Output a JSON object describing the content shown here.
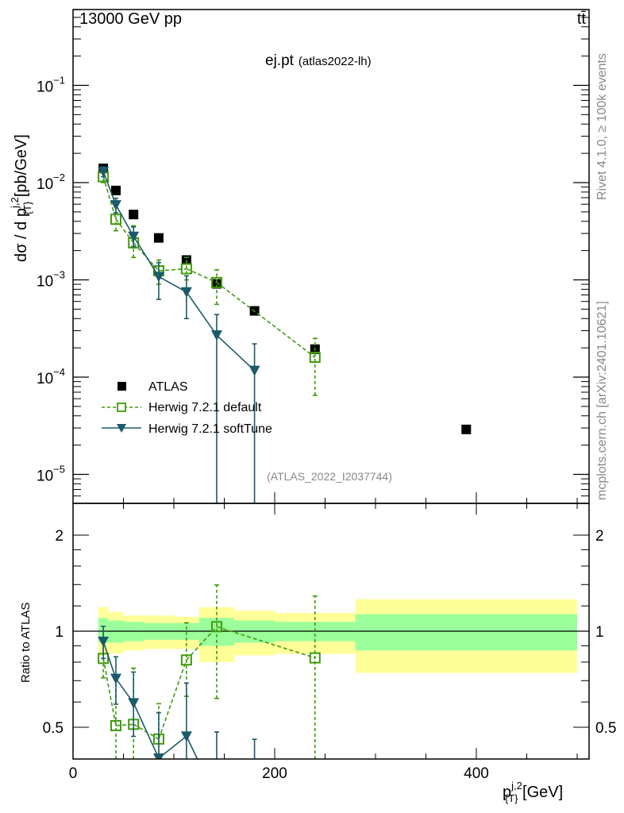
{
  "header": {
    "energy_label": "13000 GeV pp",
    "process_label": "tt̄",
    "title_main": "ej.pt",
    "title_sub": "(atlas2022-lh)",
    "side_rivet": "Rivet 4.1.0, ≥ 100k events",
    "side_mcplots": "mcplots.cern.ch [arXiv:2401.10621]",
    "analysis_id": "(ATLAS_2022_I2037744)"
  },
  "colors": {
    "atlas": "#000000",
    "herwig_default": "#3f9b0b",
    "herwig_softtune": "#1b5a6a",
    "band_inner": "#9bff9b",
    "band_outer": "#ffff99"
  },
  "chart_data": [
    {
      "type": "scatter",
      "panel": "main",
      "ylabel_parts": {
        "pre": "dσ / d p",
        "sup": "j,2",
        "sub": "{T}",
        "post": " [pb/GeV]"
      },
      "yscale": "log",
      "ylim": [
        5.1e-06,
        0.6
      ],
      "xlim": [
        0,
        512
      ],
      "yticks": [
        {
          "v": 1e-05,
          "base": "10",
          "exp": "−5"
        },
        {
          "v": 0.0001,
          "base": "10",
          "exp": "−4"
        },
        {
          "v": 0.001,
          "base": "10",
          "exp": "−3"
        },
        {
          "v": 0.01,
          "base": "10",
          "exp": "−2"
        },
        {
          "v": 0.1,
          "base": "10",
          "exp": "−1"
        }
      ],
      "bin_edges": [
        25,
        35,
        50,
        70,
        100,
        125,
        160,
        200,
        280,
        500
      ],
      "series": [
        {
          "name": "ATLAS",
          "style": "atlas",
          "x": [
            30,
            42.5,
            60,
            85,
            112.5,
            142.5,
            180,
            240,
            390
          ],
          "y": [
            0.014,
            0.0083,
            0.0047,
            0.0027,
            0.0016,
            0.00091,
            0.00048,
            0.000194,
            2.9e-05
          ]
        },
        {
          "name": "Herwig 7.2.1 default",
          "style": "default",
          "x": [
            30,
            42.5,
            60,
            85,
            112.5,
            142.5,
            240
          ],
          "y": [
            0.0115,
            0.0042,
            0.0024,
            0.00124,
            0.0013,
            0.00094,
            0.00016
          ],
          "ylo": [
            0.01,
            0.0032,
            0.0017,
            0.0009,
            0.001,
            0.00056,
            6.5e-05
          ],
          "yhi": [
            0.013,
            0.0059,
            0.0036,
            0.0016,
            0.0017,
            0.00127,
            0.00025
          ]
        },
        {
          "name": "Herwig 7.2.1 softTune",
          "style": "softtune",
          "x": [
            30,
            42.5,
            60,
            85,
            112.5,
            142.5,
            180
          ],
          "y": [
            0.013,
            0.0059,
            0.0028,
            0.00108,
            0.00075,
            0.00027,
            0.000117
          ],
          "ylo": [
            0.0115,
            0.0049,
            0.0022,
            0.00063,
            0.0004,
            3e-06,
            3e-06
          ],
          "yhi": [
            0.0145,
            0.0069,
            0.0035,
            0.0015,
            0.0011,
            0.00044,
            0.00022
          ]
        }
      ],
      "legend": {
        "placement": "lower-left",
        "entries": [
          "ATLAS",
          "Herwig 7.2.1 default",
          "Herwig 7.2.1 softTune"
        ]
      }
    },
    {
      "type": "scatter",
      "panel": "ratio",
      "ylabel": "Ratio to ATLAS",
      "yscale": "log2",
      "ylim": [
        0.4,
        2.5
      ],
      "yticks": [
        {
          "v": 0.5,
          "label": "0.5"
        },
        {
          "v": 1,
          "label": "1"
        },
        {
          "v": 2,
          "label": "2"
        }
      ],
      "xticks": [
        {
          "v": 0,
          "label": "0"
        },
        {
          "v": 200,
          "label": "200"
        },
        {
          "v": 400,
          "label": "400"
        }
      ],
      "xlabel_parts": {
        "pre": "p",
        "sup": "j,2",
        "sub": "{T}",
        "post": " [GeV]"
      },
      "band_inner": {
        "lo": [
          0.92,
          0.92,
          0.93,
          0.94,
          0.94,
          0.9,
          0.92,
          0.93,
          0.87
        ],
        "hi": [
          1.1,
          1.08,
          1.07,
          1.06,
          1.06,
          1.1,
          1.08,
          1.07,
          1.13
        ]
      },
      "band_outer": {
        "lo": [
          0.84,
          0.85,
          0.87,
          0.88,
          0.88,
          0.8,
          0.84,
          0.85,
          0.74
        ],
        "hi": [
          1.19,
          1.15,
          1.12,
          1.12,
          1.11,
          1.19,
          1.16,
          1.14,
          1.26
        ]
      }
    }
  ]
}
